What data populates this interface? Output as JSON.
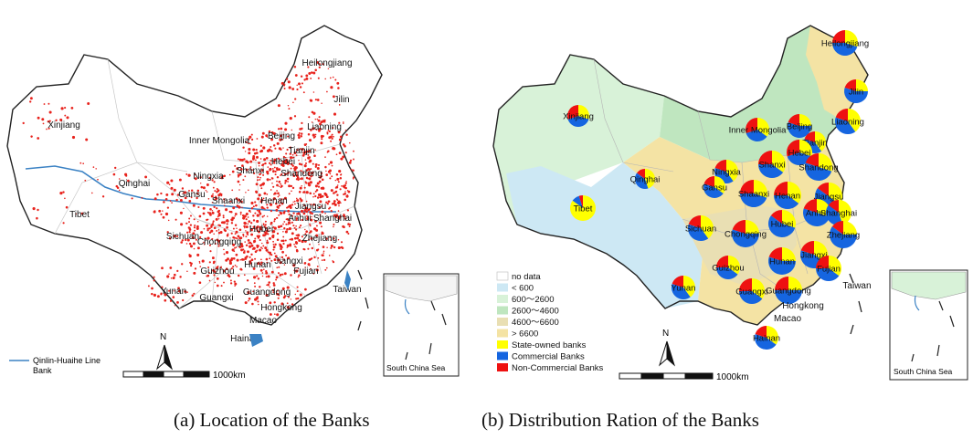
{
  "panel_a": {
    "caption": "(a) Location of the Banks",
    "labels": [
      "Heilongjiang",
      "Jilin",
      "Liaoning",
      "Xinjiang",
      "Inner Mongolia",
      "Beijing",
      "Tianjin",
      "Hebei",
      "Shandong",
      "Ningxia",
      "Shanxi",
      "Qinghai",
      "Gansu",
      "Shaanxi",
      "Henan",
      "Jiangsu",
      "Tibet",
      "Anhui",
      "Shanghai",
      "Sichuan",
      "Chongqing",
      "Hubei",
      "Zhejiang",
      "Hunan",
      "Jiangxi",
      "Guizhou",
      "Fujian",
      "Yunan",
      "Guangxi",
      "Guangdong",
      "Taiwan",
      "Hongkong",
      "Macao",
      "Hainan"
    ],
    "legend": {
      "line": "Qinlin-Huaihe Line",
      "point": "Bank"
    },
    "north": "N",
    "scale": "1000km",
    "inset": "South China Sea"
  },
  "panel_b": {
    "caption": "(b) Distribution Ration of the Banks",
    "legend_items": [
      {
        "label": "no data",
        "color": "#ffffff"
      },
      {
        "label": "< 600",
        "color": "#cde8f4"
      },
      {
        "label": "600～2600",
        "color": "#d8f2d8"
      },
      {
        "label": "2600～4600",
        "color": "#bfe6bf"
      },
      {
        "label": "4600～6600",
        "color": "#e9dfb3"
      },
      {
        "label": "> 6600",
        "color": "#f4e3a4"
      },
      {
        "label": "State-owned banks",
        "color": "#ffff00"
      },
      {
        "label": "Commercial Banks",
        "color": "#1565e0"
      },
      {
        "label": "Non-Commercial Banks",
        "color": "#ee1111"
      }
    ],
    "pie_colors": {
      "state": "#ffff00",
      "commercial": "#1565e0",
      "non_commercial": "#ee1111"
    },
    "provinces": [
      {
        "name": "Heilongjiang",
        "share": [
          0.3,
          0.45,
          0.25
        ]
      },
      {
        "name": "Jilin",
        "share": [
          0.25,
          0.55,
          0.2
        ]
      },
      {
        "name": "Liaoning",
        "share": [
          0.4,
          0.4,
          0.2
        ]
      },
      {
        "name": "Xinjiang",
        "share": [
          0.3,
          0.4,
          0.3
        ]
      },
      {
        "name": "Inner Mongolia",
        "share": [
          0.35,
          0.35,
          0.3
        ]
      },
      {
        "name": "Beijing",
        "share": [
          0.25,
          0.55,
          0.2
        ]
      },
      {
        "name": "Tianjin",
        "share": [
          0.4,
          0.4,
          0.2
        ]
      },
      {
        "name": "Hebei",
        "share": [
          0.3,
          0.4,
          0.3
        ]
      },
      {
        "name": "Shandong",
        "share": [
          0.3,
          0.5,
          0.2
        ]
      },
      {
        "name": "Ningxia",
        "share": [
          0.4,
          0.4,
          0.2
        ]
      },
      {
        "name": "Shanxi",
        "share": [
          0.35,
          0.4,
          0.25
        ]
      },
      {
        "name": "Qinghai",
        "share": [
          0.45,
          0.4,
          0.15
        ]
      },
      {
        "name": "Gansu",
        "share": [
          0.35,
          0.45,
          0.2
        ]
      },
      {
        "name": "Shaanxi",
        "share": [
          0.3,
          0.45,
          0.25
        ]
      },
      {
        "name": "Henan",
        "share": [
          0.35,
          0.4,
          0.25
        ]
      },
      {
        "name": "Jiangsu",
        "share": [
          0.35,
          0.5,
          0.15
        ]
      },
      {
        "name": "Tibet",
        "share": [
          0.85,
          0.1,
          0.05
        ]
      },
      {
        "name": "Anhui",
        "share": [
          0.3,
          0.5,
          0.2
        ]
      },
      {
        "name": "Shanghai",
        "share": [
          0.45,
          0.4,
          0.15
        ]
      },
      {
        "name": "Sichuan",
        "share": [
          0.4,
          0.4,
          0.2
        ]
      },
      {
        "name": "Chongqing",
        "share": [
          0.25,
          0.55,
          0.2
        ]
      },
      {
        "name": "Hubei",
        "share": [
          0.3,
          0.55,
          0.15
        ]
      },
      {
        "name": "Zhejiang",
        "share": [
          0.25,
          0.6,
          0.15
        ]
      },
      {
        "name": "Hunan",
        "share": [
          0.25,
          0.55,
          0.2
        ]
      },
      {
        "name": "Jiangxi",
        "share": [
          0.35,
          0.45,
          0.2
        ]
      },
      {
        "name": "Guizhou",
        "share": [
          0.35,
          0.4,
          0.25
        ]
      },
      {
        "name": "Fujian",
        "share": [
          0.35,
          0.4,
          0.25
        ]
      },
      {
        "name": "Yunan",
        "share": [
          0.4,
          0.4,
          0.2
        ]
      },
      {
        "name": "Guangxi",
        "share": [
          0.35,
          0.4,
          0.25
        ]
      },
      {
        "name": "Guangdong",
        "share": [
          0.25,
          0.5,
          0.25
        ]
      },
      {
        "name": "Hainan",
        "share": [
          0.35,
          0.45,
          0.2
        ]
      }
    ],
    "extra_labels": [
      "Taiwan",
      "Hongkong",
      "Macao"
    ],
    "north": "N",
    "scale": "1000km",
    "inset": "South China Sea"
  }
}
